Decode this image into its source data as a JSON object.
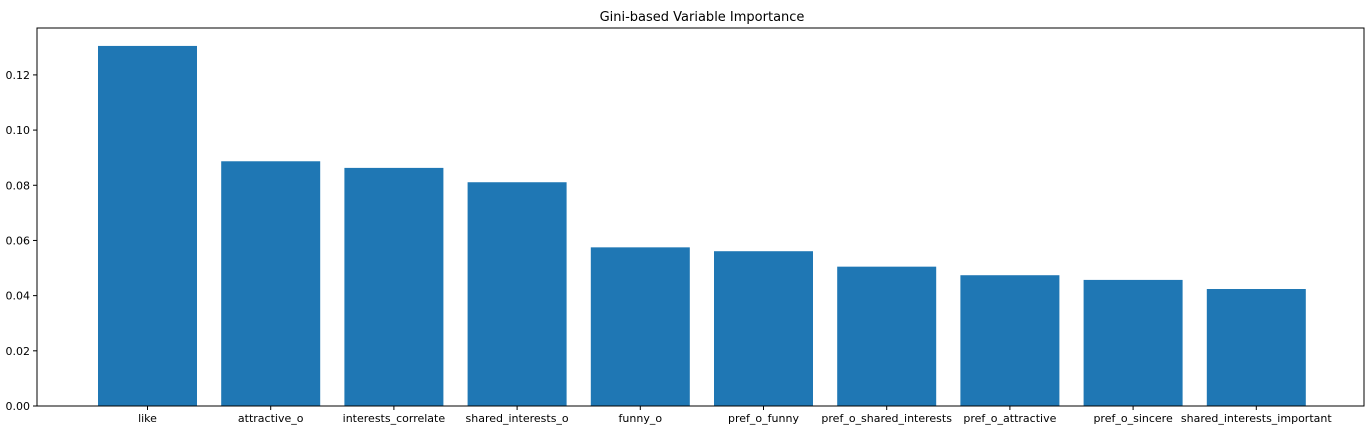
{
  "chart_data": {
    "type": "bar",
    "title": "Gini-based Variable Importance",
    "xlabel": "",
    "ylabel": "",
    "categories": [
      "like",
      "attractive_o",
      "interests_correlate",
      "shared_interests_o",
      "funny_o",
      "pref_o_funny",
      "pref_o_shared_interests",
      "pref_o_attractive",
      "pref_o_sincere",
      "shared_interests_important"
    ],
    "values": [
      0.1305,
      0.0887,
      0.0863,
      0.0811,
      0.0575,
      0.0561,
      0.0505,
      0.0474,
      0.0457,
      0.0424
    ],
    "ylim": [
      0,
      0.137
    ],
    "yticks": [
      0.0,
      0.02,
      0.04,
      0.06,
      0.08,
      0.1,
      0.12
    ],
    "ytick_labels": [
      "0.00",
      "0.02",
      "0.04",
      "0.06",
      "0.08",
      "0.10",
      "0.12"
    ],
    "bar_color": "#1f77b4",
    "grid": false,
    "legend": "none"
  }
}
